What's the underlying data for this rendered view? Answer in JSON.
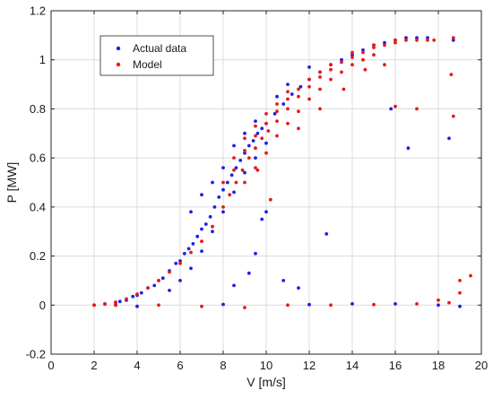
{
  "chart_data": {
    "type": "scatter",
    "xlabel": "V [m/s]",
    "ylabel": "P [MW]",
    "xlim": [
      0,
      20
    ],
    "ylim": [
      -0.2,
      1.2
    ],
    "xticks": [
      0,
      2,
      4,
      6,
      8,
      10,
      12,
      14,
      16,
      18,
      20
    ],
    "yticks": [
      -0.2,
      0,
      0.2,
      0.4,
      0.6,
      0.8,
      1,
      1.2
    ],
    "xtick_labels": [
      "0",
      "2",
      "4",
      "6",
      "8",
      "10",
      "12",
      "14",
      "16",
      "18",
      "20"
    ],
    "ytick_labels": [
      "-0.2",
      "0",
      "0.2",
      "0.4",
      "0.6",
      "0.8",
      "1",
      "1.2"
    ],
    "grid": true,
    "legend_position": "top-left",
    "series": [
      {
        "name": "Actual data",
        "color": "#1f1fe6",
        "marker": "dot",
        "points": [
          [
            2.0,
            0.0
          ],
          [
            2.5,
            0.005
          ],
          [
            3.0,
            0.01
          ],
          [
            3.2,
            0.015
          ],
          [
            3.5,
            0.02
          ],
          [
            3.8,
            0.035
          ],
          [
            4.0,
            0.04
          ],
          [
            4.2,
            0.05
          ],
          [
            4.5,
            0.07
          ],
          [
            4.8,
            0.08
          ],
          [
            5.0,
            0.1
          ],
          [
            5.2,
            0.11
          ],
          [
            5.5,
            0.14
          ],
          [
            5.8,
            0.17
          ],
          [
            6.0,
            0.18
          ],
          [
            6.2,
            0.21
          ],
          [
            6.4,
            0.23
          ],
          [
            6.6,
            0.25
          ],
          [
            6.8,
            0.28
          ],
          [
            7.0,
            0.31
          ],
          [
            7.2,
            0.33
          ],
          [
            7.4,
            0.36
          ],
          [
            7.6,
            0.4
          ],
          [
            7.8,
            0.44
          ],
          [
            8.0,
            0.47
          ],
          [
            8.2,
            0.5
          ],
          [
            8.4,
            0.53
          ],
          [
            8.6,
            0.56
          ],
          [
            8.8,
            0.59
          ],
          [
            9.0,
            0.62
          ],
          [
            9.2,
            0.65
          ],
          [
            9.4,
            0.67
          ],
          [
            9.6,
            0.7
          ],
          [
            9.8,
            0.72
          ],
          [
            10.0,
            0.74
          ],
          [
            10.4,
            0.78
          ],
          [
            10.8,
            0.82
          ],
          [
            11.2,
            0.86
          ],
          [
            11.6,
            0.89
          ],
          [
            12.0,
            0.92
          ],
          [
            12.5,
            0.95
          ],
          [
            13.0,
            0.98
          ],
          [
            13.5,
            1.0
          ],
          [
            14.0,
            1.02
          ],
          [
            14.5,
            1.04
          ],
          [
            15.0,
            1.06
          ],
          [
            15.5,
            1.07
          ],
          [
            16.0,
            1.08
          ],
          [
            16.5,
            1.09
          ],
          [
            17.0,
            1.09
          ],
          [
            17.5,
            1.09
          ],
          [
            18.7,
            1.08
          ],
          [
            5.5,
            0.06
          ],
          [
            6.0,
            0.1
          ],
          [
            6.5,
            0.15
          ],
          [
            7.0,
            0.22
          ],
          [
            7.5,
            0.3
          ],
          [
            8.0,
            0.38
          ],
          [
            8.5,
            0.46
          ],
          [
            9.0,
            0.54
          ],
          [
            9.5,
            0.6
          ],
          [
            10.0,
            0.66
          ],
          [
            6.5,
            0.38
          ],
          [
            7.0,
            0.45
          ],
          [
            7.5,
            0.5
          ],
          [
            8.0,
            0.56
          ],
          [
            8.5,
            0.65
          ],
          [
            9.0,
            0.7
          ],
          [
            9.5,
            0.75
          ],
          [
            10.5,
            0.85
          ],
          [
            11.0,
            0.9
          ],
          [
            12.0,
            0.97
          ],
          [
            9.8,
            0.35
          ],
          [
            10.0,
            0.38
          ],
          [
            12.8,
            0.29
          ],
          [
            8.5,
            0.08
          ],
          [
            9.5,
            0.21
          ],
          [
            10.8,
            0.1
          ],
          [
            11.5,
            0.07
          ],
          [
            9.2,
            0.13
          ],
          [
            15.8,
            0.8
          ],
          [
            16.6,
            0.64
          ],
          [
            18.5,
            0.68
          ],
          [
            14.0,
            0.005
          ],
          [
            16.0,
            0.005
          ],
          [
            18.0,
            0.0
          ],
          [
            19.0,
            -0.005
          ],
          [
            8.0,
            0.003
          ],
          [
            12.0,
            0.002
          ],
          [
            3.0,
            0.0
          ],
          [
            4.0,
            -0.005
          ]
        ]
      },
      {
        "name": "Model",
        "color": "#e61a1a",
        "marker": "dot",
        "points": [
          [
            2.0,
            0.0
          ],
          [
            2.5,
            0.004
          ],
          [
            3.0,
            0.012
          ],
          [
            3.5,
            0.025
          ],
          [
            4.0,
            0.045
          ],
          [
            4.5,
            0.07
          ],
          [
            5.0,
            0.1
          ],
          [
            5.5,
            0.135
          ],
          [
            6.0,
            0.17
          ],
          [
            6.5,
            0.215
          ],
          [
            7.0,
            0.26
          ],
          [
            7.5,
            0.32
          ],
          [
            8.0,
            0.4
          ],
          [
            8.3,
            0.45
          ],
          [
            8.6,
            0.5
          ],
          [
            8.9,
            0.55
          ],
          [
            9.2,
            0.6
          ],
          [
            9.5,
            0.64
          ],
          [
            9.8,
            0.68
          ],
          [
            10.1,
            0.71
          ],
          [
            10.5,
            0.75
          ],
          [
            11.0,
            0.8
          ],
          [
            11.5,
            0.85
          ],
          [
            12.0,
            0.89
          ],
          [
            12.5,
            0.93
          ],
          [
            13.0,
            0.96
          ],
          [
            13.5,
            0.99
          ],
          [
            14.0,
            1.01
          ],
          [
            14.5,
            1.03
          ],
          [
            15.0,
            1.05
          ],
          [
            15.5,
            1.06
          ],
          [
            16.0,
            1.07
          ],
          [
            16.5,
            1.08
          ],
          [
            17.0,
            1.08
          ],
          [
            17.5,
            1.08
          ],
          [
            17.8,
            1.08
          ],
          [
            18.7,
            1.09
          ],
          [
            8.5,
            0.55
          ],
          [
            9.0,
            0.63
          ],
          [
            9.5,
            0.69
          ],
          [
            10.0,
            0.74
          ],
          [
            10.5,
            0.79
          ],
          [
            11.0,
            0.84
          ],
          [
            11.5,
            0.88
          ],
          [
            12.0,
            0.92
          ],
          [
            12.5,
            0.95
          ],
          [
            13.0,
            0.98
          ],
          [
            14.0,
            1.03
          ],
          [
            15.0,
            1.06
          ],
          [
            16.0,
            1.08
          ],
          [
            8.0,
            0.5
          ],
          [
            8.5,
            0.6
          ],
          [
            9.0,
            0.68
          ],
          [
            9.5,
            0.73
          ],
          [
            10.0,
            0.78
          ],
          [
            10.5,
            0.82
          ],
          [
            11.0,
            0.87
          ],
          [
            9.0,
            0.5
          ],
          [
            9.5,
            0.56
          ],
          [
            10.0,
            0.62
          ],
          [
            10.5,
            0.69
          ],
          [
            11.0,
            0.74
          ],
          [
            11.5,
            0.79
          ],
          [
            12.0,
            0.84
          ],
          [
            12.5,
            0.88
          ],
          [
            13.0,
            0.92
          ],
          [
            13.5,
            0.95
          ],
          [
            14.0,
            0.98
          ],
          [
            14.5,
            1.0
          ],
          [
            15.0,
            1.02
          ],
          [
            16.0,
            0.81
          ],
          [
            14.6,
            0.96
          ],
          [
            15.5,
            0.98
          ],
          [
            17.0,
            0.8
          ],
          [
            18.7,
            0.77
          ],
          [
            18.6,
            0.94
          ],
          [
            9.6,
            0.55
          ],
          [
            10.2,
            0.43
          ],
          [
            11.5,
            0.72
          ],
          [
            12.5,
            0.8
          ],
          [
            13.6,
            0.88
          ],
          [
            3.0,
            0.0
          ],
          [
            5.0,
            0.0
          ],
          [
            7.0,
            -0.005
          ],
          [
            9.0,
            -0.01
          ],
          [
            11.0,
            0.0
          ],
          [
            13.0,
            0.0
          ],
          [
            15.0,
            0.002
          ],
          [
            17.0,
            0.005
          ],
          [
            18.5,
            0.01
          ],
          [
            19.0,
            0.05
          ],
          [
            19.5,
            0.12
          ],
          [
            19.0,
            0.1
          ],
          [
            18.0,
            0.02
          ]
        ]
      }
    ]
  }
}
